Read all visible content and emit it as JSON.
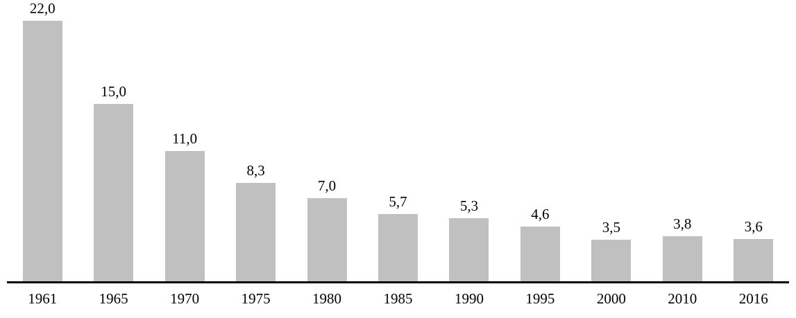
{
  "chart_data": {
    "type": "bar",
    "categories": [
      "1961",
      "1965",
      "1970",
      "1975",
      "1980",
      "1985",
      "1990",
      "1995",
      "2000",
      "2010",
      "2016"
    ],
    "values": [
      22.0,
      15.0,
      11.0,
      8.3,
      7.0,
      5.7,
      5.3,
      4.6,
      3.5,
      3.8,
      3.6
    ],
    "value_labels": [
      "22,0",
      "15,0",
      "11,0",
      "8,3",
      "7,0",
      "5,7",
      "5,3",
      "4,6",
      "3,5",
      "3,8",
      "3,6"
    ],
    "title": "",
    "xlabel": "",
    "ylabel": "",
    "ylim": [
      0,
      23
    ],
    "grid": false,
    "legend": false,
    "decimal_separator": ",",
    "bar_color": "#c0c0c0",
    "axis_color": "#000000",
    "label_color": "#000000"
  }
}
